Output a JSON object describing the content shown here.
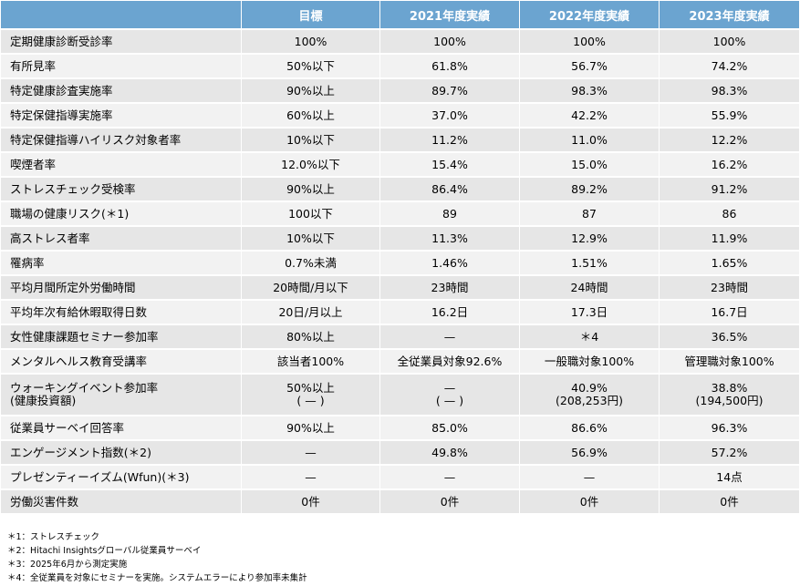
{
  "header": [
    "",
    "目標",
    "2021年度実績",
    "2022年度実績",
    "2023年度実績"
  ],
  "rows": [
    [
      "定期健康診断受診率",
      "100%",
      "100%",
      "100%",
      "100%"
    ],
    [
      "有所見率",
      "50%以下",
      "61.8%",
      "56.7%",
      "74.2%"
    ],
    [
      "特定健康診査実施率",
      "90%以上",
      "89.7%",
      "98.3%",
      "98.3%"
    ],
    [
      "特定保健指導実施率",
      "60%以上",
      "37.0%",
      "42.2%",
      "55.9%"
    ],
    [
      "特定保健指導ハイリスク対象者率",
      "10%以下",
      "11.2%",
      "11.0%",
      "12.2%"
    ],
    [
      "喫煙者率",
      "12.0%以下",
      "15.4%",
      "15.0%",
      "16.2%"
    ],
    [
      "ストレスチェック受検率",
      "90%以上",
      "86.4%",
      "89.2%",
      "91.2%"
    ],
    [
      "職場の健康リスク(＊1)",
      "100以下",
      "89",
      "87",
      "86"
    ],
    [
      "高ストレス者率",
      "10%以下",
      "11.3%",
      "12.9%",
      "11.9%"
    ],
    [
      "罹病率",
      "0.7%未満",
      "1.46%",
      "1.51%",
      "1.65%"
    ],
    [
      "平均月間所定外労働時間",
      "20時間/月以下",
      "23時間",
      "24時間",
      "23時間"
    ],
    [
      "平均年次有給休暇取得日数",
      "20日/月以上",
      "16.2日",
      "17.3日",
      "16.7日"
    ],
    [
      "女性健康課題セミナー参加率",
      "80%以上",
      "—",
      "＊4",
      "36.5%"
    ],
    [
      "メンタルヘルス教育受講率",
      "該当者100%",
      "全従業員対象92.6%",
      "一般職対象100%",
      "管理職対象100%"
    ],
    [
      "ウォーキングイベント参加率\n(健康投資額)",
      "50%以上\n( — )",
      "—\n( — )",
      "40.9%\n(208,253円)",
      "38.8%\n(194,500円)"
    ],
    [
      "従業員サーベイ回答率",
      "90%以上",
      "85.0%",
      "86.6%",
      "96.3%"
    ],
    [
      "エンゲージメント指数(＊2)",
      "—",
      "49.8%",
      "56.9%",
      "57.2%"
    ],
    [
      "プレゼンティーイズム(Wfun)(＊3)",
      "—",
      "—",
      "—",
      "14点"
    ],
    [
      "労働災害件数",
      "0件",
      "0件",
      "0件",
      "0件"
    ]
  ],
  "notes": [
    "＊1：ストレスチェック",
    "＊2：Hitachi Insightsグローバル従業員サーベイ",
    "＊3：2025年6月から測定実施",
    "＊4：全従業員を対象にセミナーを実施。システムエラーにより参加率未集計"
  ],
  "colors": {
    "header_bg": "#6ba4d0",
    "row_odd": "#e6e6e6",
    "row_even": "#f2f2f2"
  }
}
